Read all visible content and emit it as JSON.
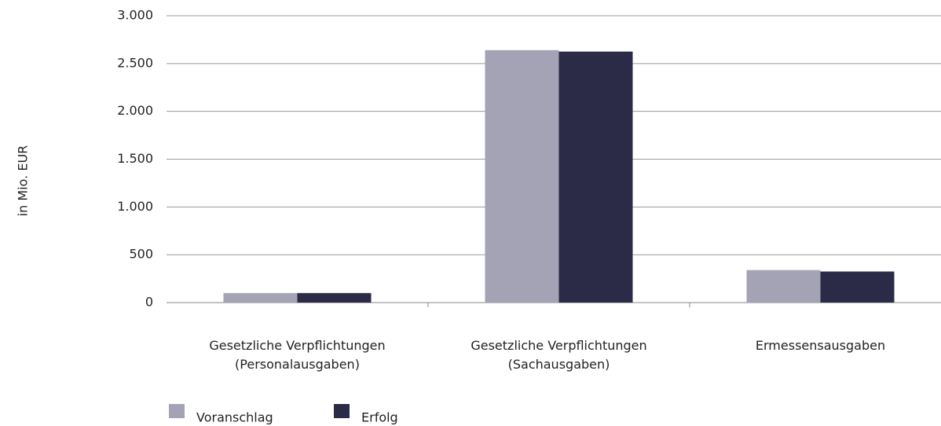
{
  "chart_data": {
    "type": "bar",
    "y_label": "in Mio. EUR",
    "categories": [
      "Gesetzliche Verpflichtungen\n(Personalausgaben)",
      "Gesetzliche Verpflichtungen\n(Sachausgaben)",
      "Ermessensausgaben"
    ],
    "series": [
      {
        "name": "Voranschlag",
        "color": "#a3a3b5",
        "values": [
          100,
          2640,
          340
        ]
      },
      {
        "name": "Erfolg",
        "color": "#2b2b47",
        "values": [
          100,
          2625,
          325
        ]
      }
    ],
    "ylim": [
      0,
      3000
    ],
    "yticks": [
      0,
      500,
      {
        "value": 1000,
        "label": "1.000"
      },
      {
        "value": 1500,
        "label": "1.500"
      },
      {
        "value": 2000,
        "label": "2.000"
      },
      {
        "value": 2500,
        "label": "2.500"
      },
      {
        "value": 3000,
        "label": "3.000"
      }
    ],
    "grid": true,
    "legend": "bottom-left"
  }
}
